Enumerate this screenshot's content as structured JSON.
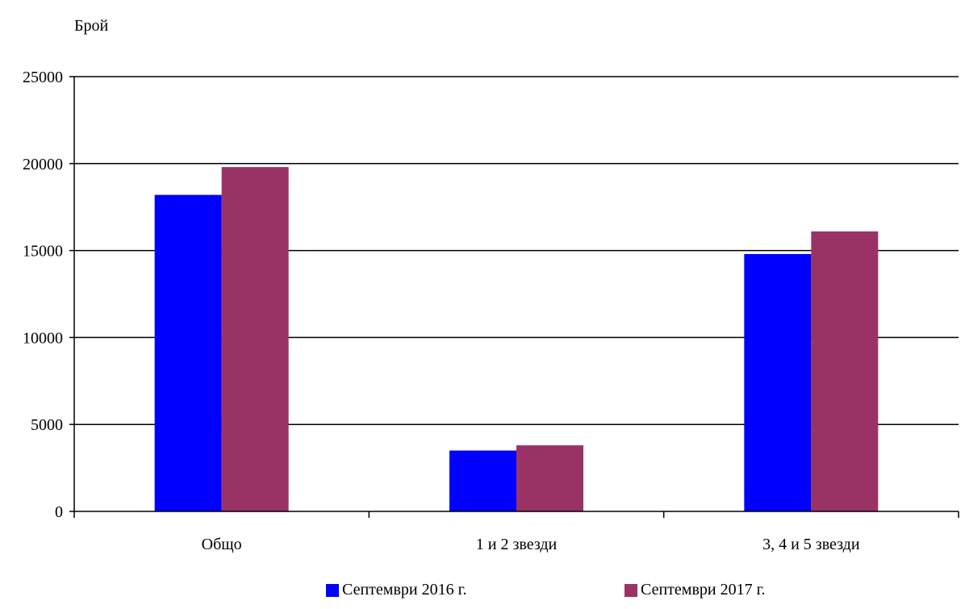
{
  "chart_data": {
    "type": "bar",
    "title": "",
    "ylabel": "Брой",
    "xlabel": "",
    "ylim": [
      0,
      25000
    ],
    "yticks": [
      "0",
      "5000",
      "10000",
      "15000",
      "20000",
      "25000"
    ],
    "categories": [
      "Общо",
      "1 и  2 звезди",
      "3, 4 и 5 звезди"
    ],
    "series": [
      {
        "name": "Септември 2016 г.",
        "color": "#0000ff",
        "values": [
          18200,
          3500,
          14800
        ]
      },
      {
        "name": "Септември 2017 г.",
        "color": "#993366",
        "values": [
          19800,
          3800,
          16100
        ]
      }
    ],
    "grid": true,
    "legend": "bottom"
  }
}
